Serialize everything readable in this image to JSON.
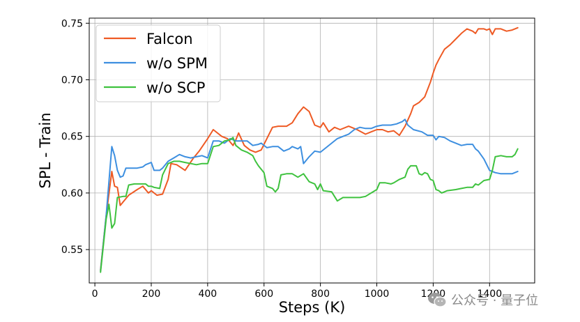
{
  "chart_data": {
    "type": "line",
    "xlabel": "Steps (K)",
    "ylabel": "SPL - Train",
    "xlim": [
      -20,
      1560
    ],
    "ylim": [
      0.5205,
      0.7545
    ],
    "xticks": [
      0,
      200,
      400,
      600,
      800,
      1000,
      1200,
      1400
    ],
    "yticks": [
      0.55,
      0.6,
      0.65,
      0.7,
      0.75
    ],
    "grid": true,
    "legend_position": "top-left",
    "series": [
      {
        "name": "Falcon",
        "color": "#ee5a24",
        "points": [
          [
            20,
            0.532
          ],
          [
            40,
            0.58
          ],
          [
            60,
            0.619
          ],
          [
            70,
            0.606
          ],
          [
            80,
            0.605
          ],
          [
            90,
            0.589
          ],
          [
            100,
            0.592
          ],
          [
            120,
            0.598
          ],
          [
            150,
            0.603
          ],
          [
            170,
            0.606
          ],
          [
            190,
            0.6
          ],
          [
            200,
            0.602
          ],
          [
            220,
            0.598
          ],
          [
            240,
            0.599
          ],
          [
            260,
            0.612
          ],
          [
            270,
            0.626
          ],
          [
            290,
            0.625
          ],
          [
            320,
            0.62
          ],
          [
            350,
            0.631
          ],
          [
            370,
            0.637
          ],
          [
            400,
            0.648
          ],
          [
            420,
            0.656
          ],
          [
            450,
            0.65
          ],
          [
            470,
            0.648
          ],
          [
            490,
            0.642
          ],
          [
            500,
            0.647
          ],
          [
            510,
            0.653
          ],
          [
            530,
            0.642
          ],
          [
            550,
            0.638
          ],
          [
            570,
            0.636
          ],
          [
            590,
            0.638
          ],
          [
            610,
            0.648
          ],
          [
            630,
            0.658
          ],
          [
            650,
            0.659
          ],
          [
            680,
            0.659
          ],
          [
            700,
            0.662
          ],
          [
            720,
            0.67
          ],
          [
            740,
            0.676
          ],
          [
            760,
            0.672
          ],
          [
            780,
            0.66
          ],
          [
            800,
            0.658
          ],
          [
            810,
            0.662
          ],
          [
            830,
            0.654
          ],
          [
            850,
            0.658
          ],
          [
            870,
            0.656
          ],
          [
            900,
            0.659
          ],
          [
            930,
            0.656
          ],
          [
            960,
            0.652
          ],
          [
            980,
            0.654
          ],
          [
            1000,
            0.656
          ],
          [
            1020,
            0.656
          ],
          [
            1040,
            0.654
          ],
          [
            1060,
            0.655
          ],
          [
            1080,
            0.651
          ],
          [
            1100,
            0.659
          ],
          [
            1120,
            0.67
          ],
          [
            1130,
            0.677
          ],
          [
            1150,
            0.68
          ],
          [
            1170,
            0.685
          ],
          [
            1190,
            0.698
          ],
          [
            1200,
            0.706
          ],
          [
            1210,
            0.713
          ],
          [
            1220,
            0.718
          ],
          [
            1240,
            0.727
          ],
          [
            1260,
            0.731
          ],
          [
            1280,
            0.736
          ],
          [
            1300,
            0.741
          ],
          [
            1320,
            0.745
          ],
          [
            1340,
            0.743
          ],
          [
            1350,
            0.741
          ],
          [
            1360,
            0.745
          ],
          [
            1380,
            0.745
          ],
          [
            1390,
            0.744
          ],
          [
            1400,
            0.745
          ],
          [
            1410,
            0.74
          ],
          [
            1420,
            0.745
          ],
          [
            1440,
            0.745
          ],
          [
            1460,
            0.743
          ],
          [
            1480,
            0.744
          ],
          [
            1500,
            0.746
          ]
        ]
      },
      {
        "name": "w/o SPM",
        "color": "#3d8fe0",
        "points": [
          [
            20,
            0.531
          ],
          [
            40,
            0.58
          ],
          [
            60,
            0.641
          ],
          [
            70,
            0.633
          ],
          [
            80,
            0.62
          ],
          [
            90,
            0.614
          ],
          [
            100,
            0.615
          ],
          [
            110,
            0.622
          ],
          [
            130,
            0.622
          ],
          [
            150,
            0.622
          ],
          [
            170,
            0.623
          ],
          [
            180,
            0.625
          ],
          [
            200,
            0.627
          ],
          [
            210,
            0.62
          ],
          [
            230,
            0.62
          ],
          [
            240,
            0.622
          ],
          [
            260,
            0.628
          ],
          [
            280,
            0.631
          ],
          [
            300,
            0.634
          ],
          [
            320,
            0.632
          ],
          [
            340,
            0.631
          ],
          [
            360,
            0.632
          ],
          [
            380,
            0.633
          ],
          [
            400,
            0.631
          ],
          [
            420,
            0.646
          ],
          [
            440,
            0.646
          ],
          [
            460,
            0.644
          ],
          [
            480,
            0.648
          ],
          [
            500,
            0.646
          ],
          [
            520,
            0.646
          ],
          [
            540,
            0.646
          ],
          [
            560,
            0.642
          ],
          [
            580,
            0.643
          ],
          [
            590,
            0.644
          ],
          [
            610,
            0.64
          ],
          [
            630,
            0.641
          ],
          [
            650,
            0.641
          ],
          [
            670,
            0.637
          ],
          [
            690,
            0.639
          ],
          [
            700,
            0.641
          ],
          [
            720,
            0.639
          ],
          [
            730,
            0.641
          ],
          [
            740,
            0.626
          ],
          [
            760,
            0.632
          ],
          [
            780,
            0.637
          ],
          [
            800,
            0.636
          ],
          [
            820,
            0.64
          ],
          [
            840,
            0.644
          ],
          [
            860,
            0.648
          ],
          [
            880,
            0.65
          ],
          [
            900,
            0.652
          ],
          [
            920,
            0.656
          ],
          [
            940,
            0.658
          ],
          [
            960,
            0.657
          ],
          [
            980,
            0.657
          ],
          [
            1000,
            0.659
          ],
          [
            1020,
            0.66
          ],
          [
            1050,
            0.66
          ],
          [
            1070,
            0.661
          ],
          [
            1090,
            0.663
          ],
          [
            1100,
            0.665
          ],
          [
            1110,
            0.66
          ],
          [
            1130,
            0.656
          ],
          [
            1160,
            0.654
          ],
          [
            1180,
            0.651
          ],
          [
            1200,
            0.651
          ],
          [
            1210,
            0.647
          ],
          [
            1220,
            0.65
          ],
          [
            1240,
            0.649
          ],
          [
            1260,
            0.646
          ],
          [
            1280,
            0.644
          ],
          [
            1300,
            0.642
          ],
          [
            1320,
            0.643
          ],
          [
            1340,
            0.643
          ],
          [
            1350,
            0.639
          ],
          [
            1360,
            0.637
          ],
          [
            1380,
            0.63
          ],
          [
            1400,
            0.62
          ],
          [
            1420,
            0.618
          ],
          [
            1440,
            0.617
          ],
          [
            1460,
            0.617
          ],
          [
            1480,
            0.617
          ],
          [
            1500,
            0.619
          ]
        ]
      },
      {
        "name": "w/o SCP",
        "color": "#3ec23e",
        "points": [
          [
            20,
            0.53
          ],
          [
            40,
            0.577
          ],
          [
            50,
            0.59
          ],
          [
            60,
            0.569
          ],
          [
            70,
            0.573
          ],
          [
            80,
            0.596
          ],
          [
            100,
            0.597
          ],
          [
            110,
            0.597
          ],
          [
            120,
            0.607
          ],
          [
            140,
            0.608
          ],
          [
            160,
            0.608
          ],
          [
            180,
            0.608
          ],
          [
            190,
            0.606
          ],
          [
            200,
            0.606
          ],
          [
            210,
            0.605
          ],
          [
            230,
            0.604
          ],
          [
            240,
            0.616
          ],
          [
            260,
            0.626
          ],
          [
            280,
            0.628
          ],
          [
            300,
            0.628
          ],
          [
            320,
            0.627
          ],
          [
            340,
            0.626
          ],
          [
            360,
            0.625
          ],
          [
            380,
            0.626
          ],
          [
            400,
            0.626
          ],
          [
            420,
            0.641
          ],
          [
            440,
            0.642
          ],
          [
            460,
            0.646
          ],
          [
            480,
            0.647
          ],
          [
            490,
            0.649
          ],
          [
            500,
            0.642
          ],
          [
            520,
            0.638
          ],
          [
            540,
            0.636
          ],
          [
            560,
            0.633
          ],
          [
            570,
            0.628
          ],
          [
            580,
            0.624
          ],
          [
            600,
            0.618
          ],
          [
            610,
            0.606
          ],
          [
            630,
            0.604
          ],
          [
            640,
            0.601
          ],
          [
            650,
            0.604
          ],
          [
            660,
            0.616
          ],
          [
            680,
            0.617
          ],
          [
            700,
            0.617
          ],
          [
            720,
            0.614
          ],
          [
            740,
            0.617
          ],
          [
            760,
            0.61
          ],
          [
            780,
            0.608
          ],
          [
            790,
            0.603
          ],
          [
            800,
            0.608
          ],
          [
            810,
            0.602
          ],
          [
            840,
            0.601
          ],
          [
            860,
            0.593
          ],
          [
            880,
            0.596
          ],
          [
            900,
            0.596
          ],
          [
            920,
            0.596
          ],
          [
            940,
            0.596
          ],
          [
            960,
            0.597
          ],
          [
            980,
            0.6
          ],
          [
            1000,
            0.603
          ],
          [
            1010,
            0.609
          ],
          [
            1030,
            0.609
          ],
          [
            1050,
            0.608
          ],
          [
            1060,
            0.609
          ],
          [
            1080,
            0.612
          ],
          [
            1100,
            0.614
          ],
          [
            1110,
            0.621
          ],
          [
            1120,
            0.624
          ],
          [
            1140,
            0.624
          ],
          [
            1150,
            0.617
          ],
          [
            1160,
            0.616
          ],
          [
            1170,
            0.618
          ],
          [
            1180,
            0.617
          ],
          [
            1190,
            0.612
          ],
          [
            1200,
            0.611
          ],
          [
            1210,
            0.603
          ],
          [
            1220,
            0.602
          ],
          [
            1230,
            0.6
          ],
          [
            1250,
            0.602
          ],
          [
            1280,
            0.603
          ],
          [
            1300,
            0.604
          ],
          [
            1320,
            0.605
          ],
          [
            1340,
            0.605
          ],
          [
            1350,
            0.608
          ],
          [
            1360,
            0.607
          ],
          [
            1380,
            0.611
          ],
          [
            1400,
            0.612
          ],
          [
            1410,
            0.62
          ],
          [
            1420,
            0.632
          ],
          [
            1440,
            0.633
          ],
          [
            1460,
            0.632
          ],
          [
            1480,
            0.632
          ],
          [
            1490,
            0.634
          ],
          [
            1500,
            0.639
          ]
        ]
      }
    ]
  },
  "watermark": {
    "text": "公众号 · 量子位",
    "icon": "wechat-icon"
  }
}
